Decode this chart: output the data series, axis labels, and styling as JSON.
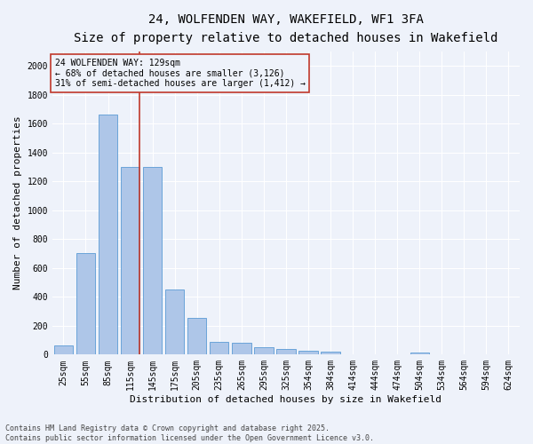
{
  "title_line1": "24, WOLFENDEN WAY, WAKEFIELD, WF1 3FA",
  "title_line2": "Size of property relative to detached houses in Wakefield",
  "xlabel": "Distribution of detached houses by size in Wakefield",
  "ylabel": "Number of detached properties",
  "bar_color": "#aec6e8",
  "bar_edge_color": "#5b9bd5",
  "vline_color": "#c0392b",
  "categories": [
    "25sqm",
    "55sqm",
    "85sqm",
    "115sqm",
    "145sqm",
    "175sqm",
    "205sqm",
    "235sqm",
    "265sqm",
    "295sqm",
    "325sqm",
    "354sqm",
    "384sqm",
    "414sqm",
    "444sqm",
    "474sqm",
    "504sqm",
    "534sqm",
    "564sqm",
    "594sqm",
    "624sqm"
  ],
  "values": [
    65,
    700,
    1660,
    1300,
    1300,
    450,
    255,
    90,
    85,
    50,
    40,
    25,
    20,
    0,
    0,
    0,
    12,
    0,
    0,
    0,
    0
  ],
  "ylim": [
    0,
    2100
  ],
  "yticks": [
    0,
    200,
    400,
    600,
    800,
    1000,
    1200,
    1400,
    1600,
    1800,
    2000
  ],
  "vline_position": 3.42,
  "annotation_text": "24 WOLFENDEN WAY: 129sqm\n← 68% of detached houses are smaller (3,126)\n31% of semi-detached houses are larger (1,412) →",
  "footer_text": "Contains HM Land Registry data © Crown copyright and database right 2025.\nContains public sector information licensed under the Open Government Licence v3.0.",
  "background_color": "#eef2fa",
  "grid_color": "#ffffff",
  "title_fontsize": 10,
  "subtitle_fontsize": 9,
  "axis_label_fontsize": 8,
  "tick_fontsize": 7,
  "annotation_fontsize": 7,
  "footer_fontsize": 6
}
